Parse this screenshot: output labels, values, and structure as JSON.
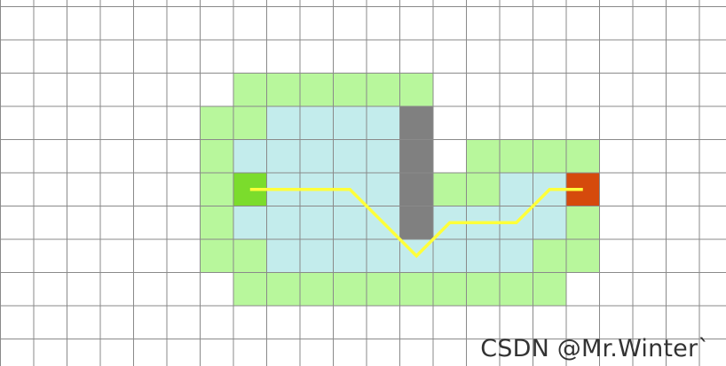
{
  "figure": {
    "grid": {
      "columns": 22,
      "rows": 11,
      "line_color": "#8a8a8a"
    },
    "colors": {
      "open": "#c3ecec",
      "closed": "#b8f79c",
      "obstacle": "#808080",
      "start": "#7bdc2c",
      "goal": "#d54a0c",
      "path": "#ffff3a"
    },
    "closed_cells": [
      [
        7,
        2
      ],
      [
        8,
        2
      ],
      [
        9,
        2
      ],
      [
        10,
        2
      ],
      [
        11,
        2
      ],
      [
        12,
        2
      ],
      [
        6,
        3
      ],
      [
        7,
        3
      ],
      [
        6,
        4
      ],
      [
        14,
        4
      ],
      [
        15,
        4
      ],
      [
        16,
        4
      ],
      [
        17,
        4
      ],
      [
        6,
        5
      ],
      [
        13,
        5
      ],
      [
        14,
        5
      ],
      [
        6,
        6
      ],
      [
        17,
        6
      ],
      [
        6,
        7
      ],
      [
        7,
        7
      ],
      [
        16,
        7
      ],
      [
        17,
        7
      ],
      [
        7,
        8
      ],
      [
        8,
        8
      ],
      [
        9,
        8
      ],
      [
        10,
        8
      ],
      [
        11,
        8
      ],
      [
        12,
        8
      ],
      [
        13,
        8
      ],
      [
        14,
        8
      ],
      [
        15,
        8
      ],
      [
        16,
        8
      ]
    ],
    "open_cells": [
      [
        8,
        3
      ],
      [
        9,
        3
      ],
      [
        10,
        3
      ],
      [
        11,
        3
      ],
      [
        7,
        4
      ],
      [
        8,
        4
      ],
      [
        9,
        4
      ],
      [
        10,
        4
      ],
      [
        11,
        4
      ],
      [
        8,
        5
      ],
      [
        9,
        5
      ],
      [
        10,
        5
      ],
      [
        11,
        5
      ],
      [
        15,
        5
      ],
      [
        16,
        5
      ],
      [
        7,
        6
      ],
      [
        8,
        6
      ],
      [
        9,
        6
      ],
      [
        10,
        6
      ],
      [
        11,
        6
      ],
      [
        13,
        6
      ],
      [
        14,
        6
      ],
      [
        15,
        6
      ],
      [
        16,
        6
      ],
      [
        8,
        7
      ],
      [
        9,
        7
      ],
      [
        10,
        7
      ],
      [
        11,
        7
      ],
      [
        12,
        7
      ],
      [
        13,
        7
      ],
      [
        14,
        7
      ],
      [
        15,
        7
      ]
    ],
    "obstacle_cells": [
      [
        12,
        3
      ],
      [
        12,
        4
      ],
      [
        12,
        5
      ],
      [
        12,
        6
      ]
    ],
    "start_cell": [
      7,
      5
    ],
    "goal_cell": [
      17,
      5
    ],
    "path_points": [
      [
        7.5,
        5.5
      ],
      [
        10.5,
        5.5
      ],
      [
        12.5,
        7.5
      ],
      [
        13.5,
        6.5
      ],
      [
        15.5,
        6.5
      ],
      [
        16.5,
        5.5
      ],
      [
        17.5,
        5.5
      ]
    ]
  },
  "watermark": {
    "text": "CSDN @Mr.Winter`"
  }
}
